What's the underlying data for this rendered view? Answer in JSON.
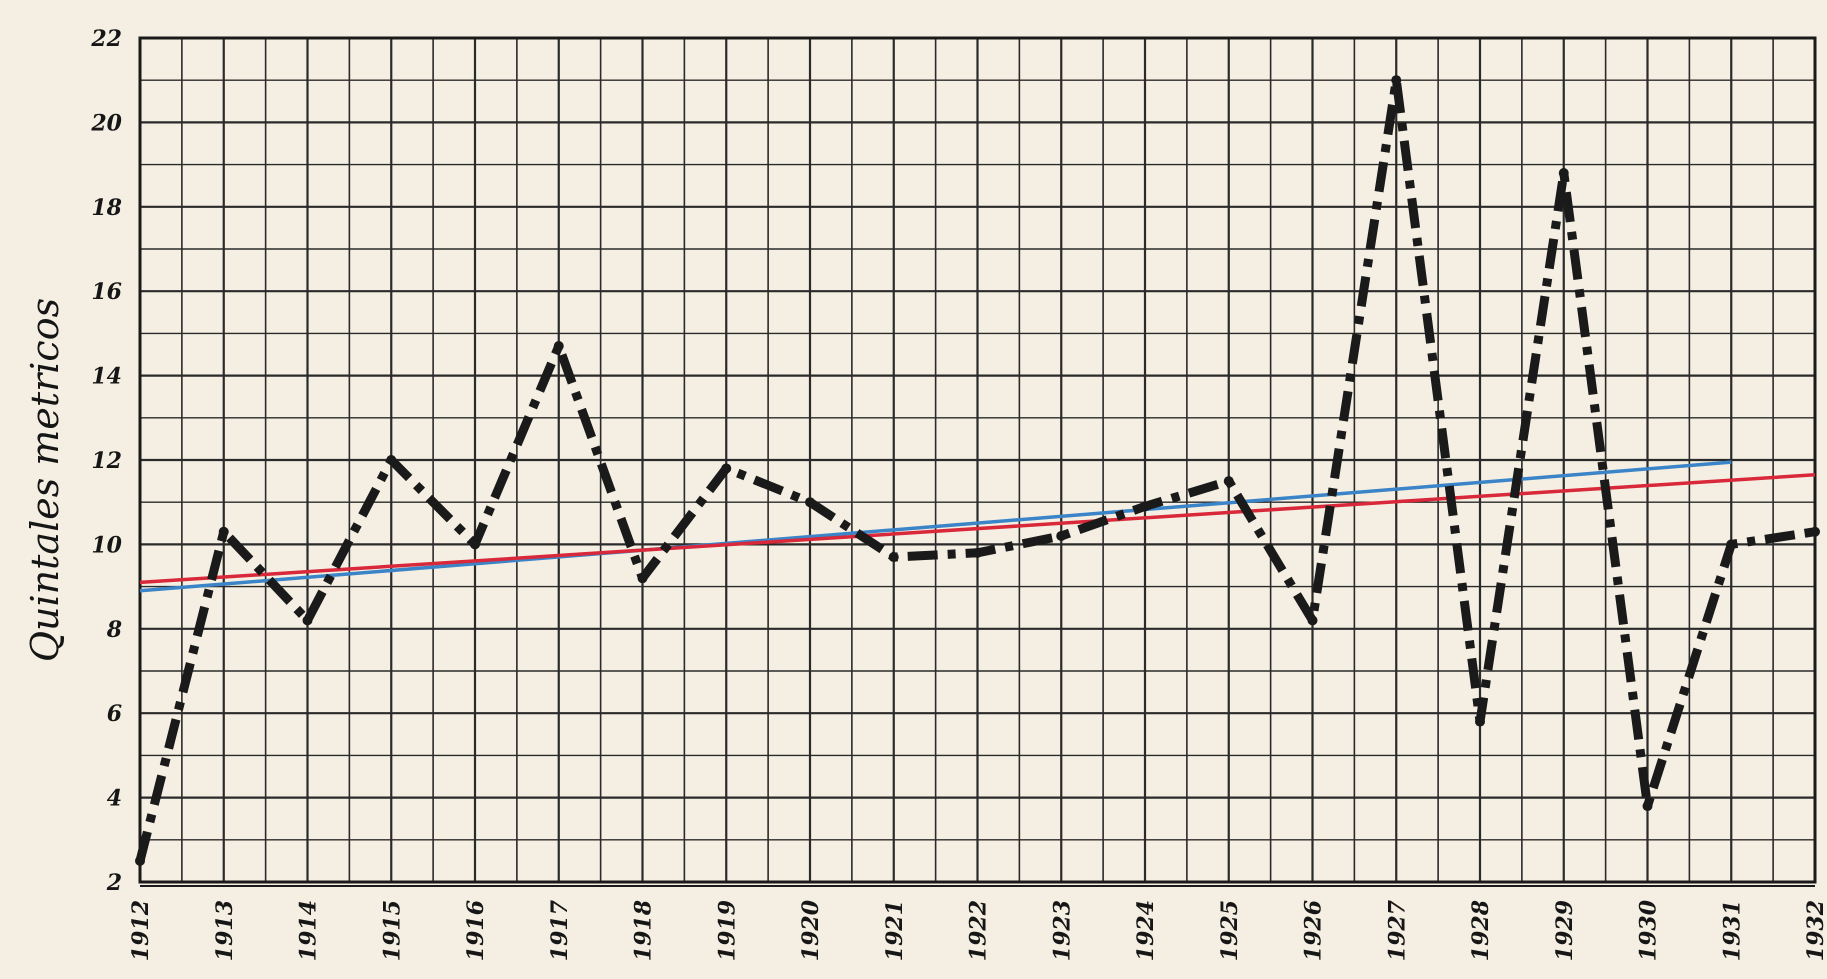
{
  "chart_data": {
    "type": "line",
    "title": "",
    "xlabel": "",
    "ylabel": "Quintales metricos",
    "categories": [
      "1912",
      "1913",
      "1914",
      "1915",
      "1916",
      "1917",
      "1918",
      "1919",
      "1920",
      "1921",
      "1922",
      "1923",
      "1924",
      "1925",
      "1926",
      "1927",
      "1928",
      "1929",
      "1930",
      "1931",
      "1932"
    ],
    "ylim": [
      2,
      22
    ],
    "yticks": [
      2,
      4,
      6,
      8,
      10,
      12,
      14,
      16,
      18,
      20,
      22
    ],
    "grid": true,
    "series": [
      {
        "name": "",
        "style": "dash-dot",
        "color": "#1a1a1a",
        "points": [
          [
            1912,
            2.5
          ],
          [
            1913,
            10.3
          ],
          [
            1914,
            8.2
          ],
          [
            1915,
            12.0
          ],
          [
            1916,
            10.0
          ],
          [
            1917,
            14.7
          ],
          [
            1918,
            9.2
          ],
          [
            1919,
            11.8
          ],
          [
            1920,
            11.0
          ],
          [
            1921,
            9.7
          ],
          [
            1922,
            9.8
          ],
          [
            1923,
            10.2
          ],
          [
            1924,
            10.9
          ],
          [
            1925,
            11.5
          ],
          [
            1926,
            8.2
          ],
          [
            1927,
            21.0
          ],
          [
            1928,
            5.8
          ],
          [
            1929,
            18.8
          ],
          [
            1930,
            3.8
          ],
          [
            1931,
            10.0
          ],
          [
            1932,
            10.3
          ]
        ]
      },
      {
        "name": "",
        "style": "solid",
        "color": "#3b84c8",
        "points": [
          [
            1912,
            8.9
          ],
          [
            1931,
            11.95
          ]
        ]
      },
      {
        "name": "",
        "style": "solid",
        "color": "#d8283a",
        "points": [
          [
            1912,
            9.1
          ],
          [
            1932,
            11.65
          ]
        ]
      }
    ]
  }
}
